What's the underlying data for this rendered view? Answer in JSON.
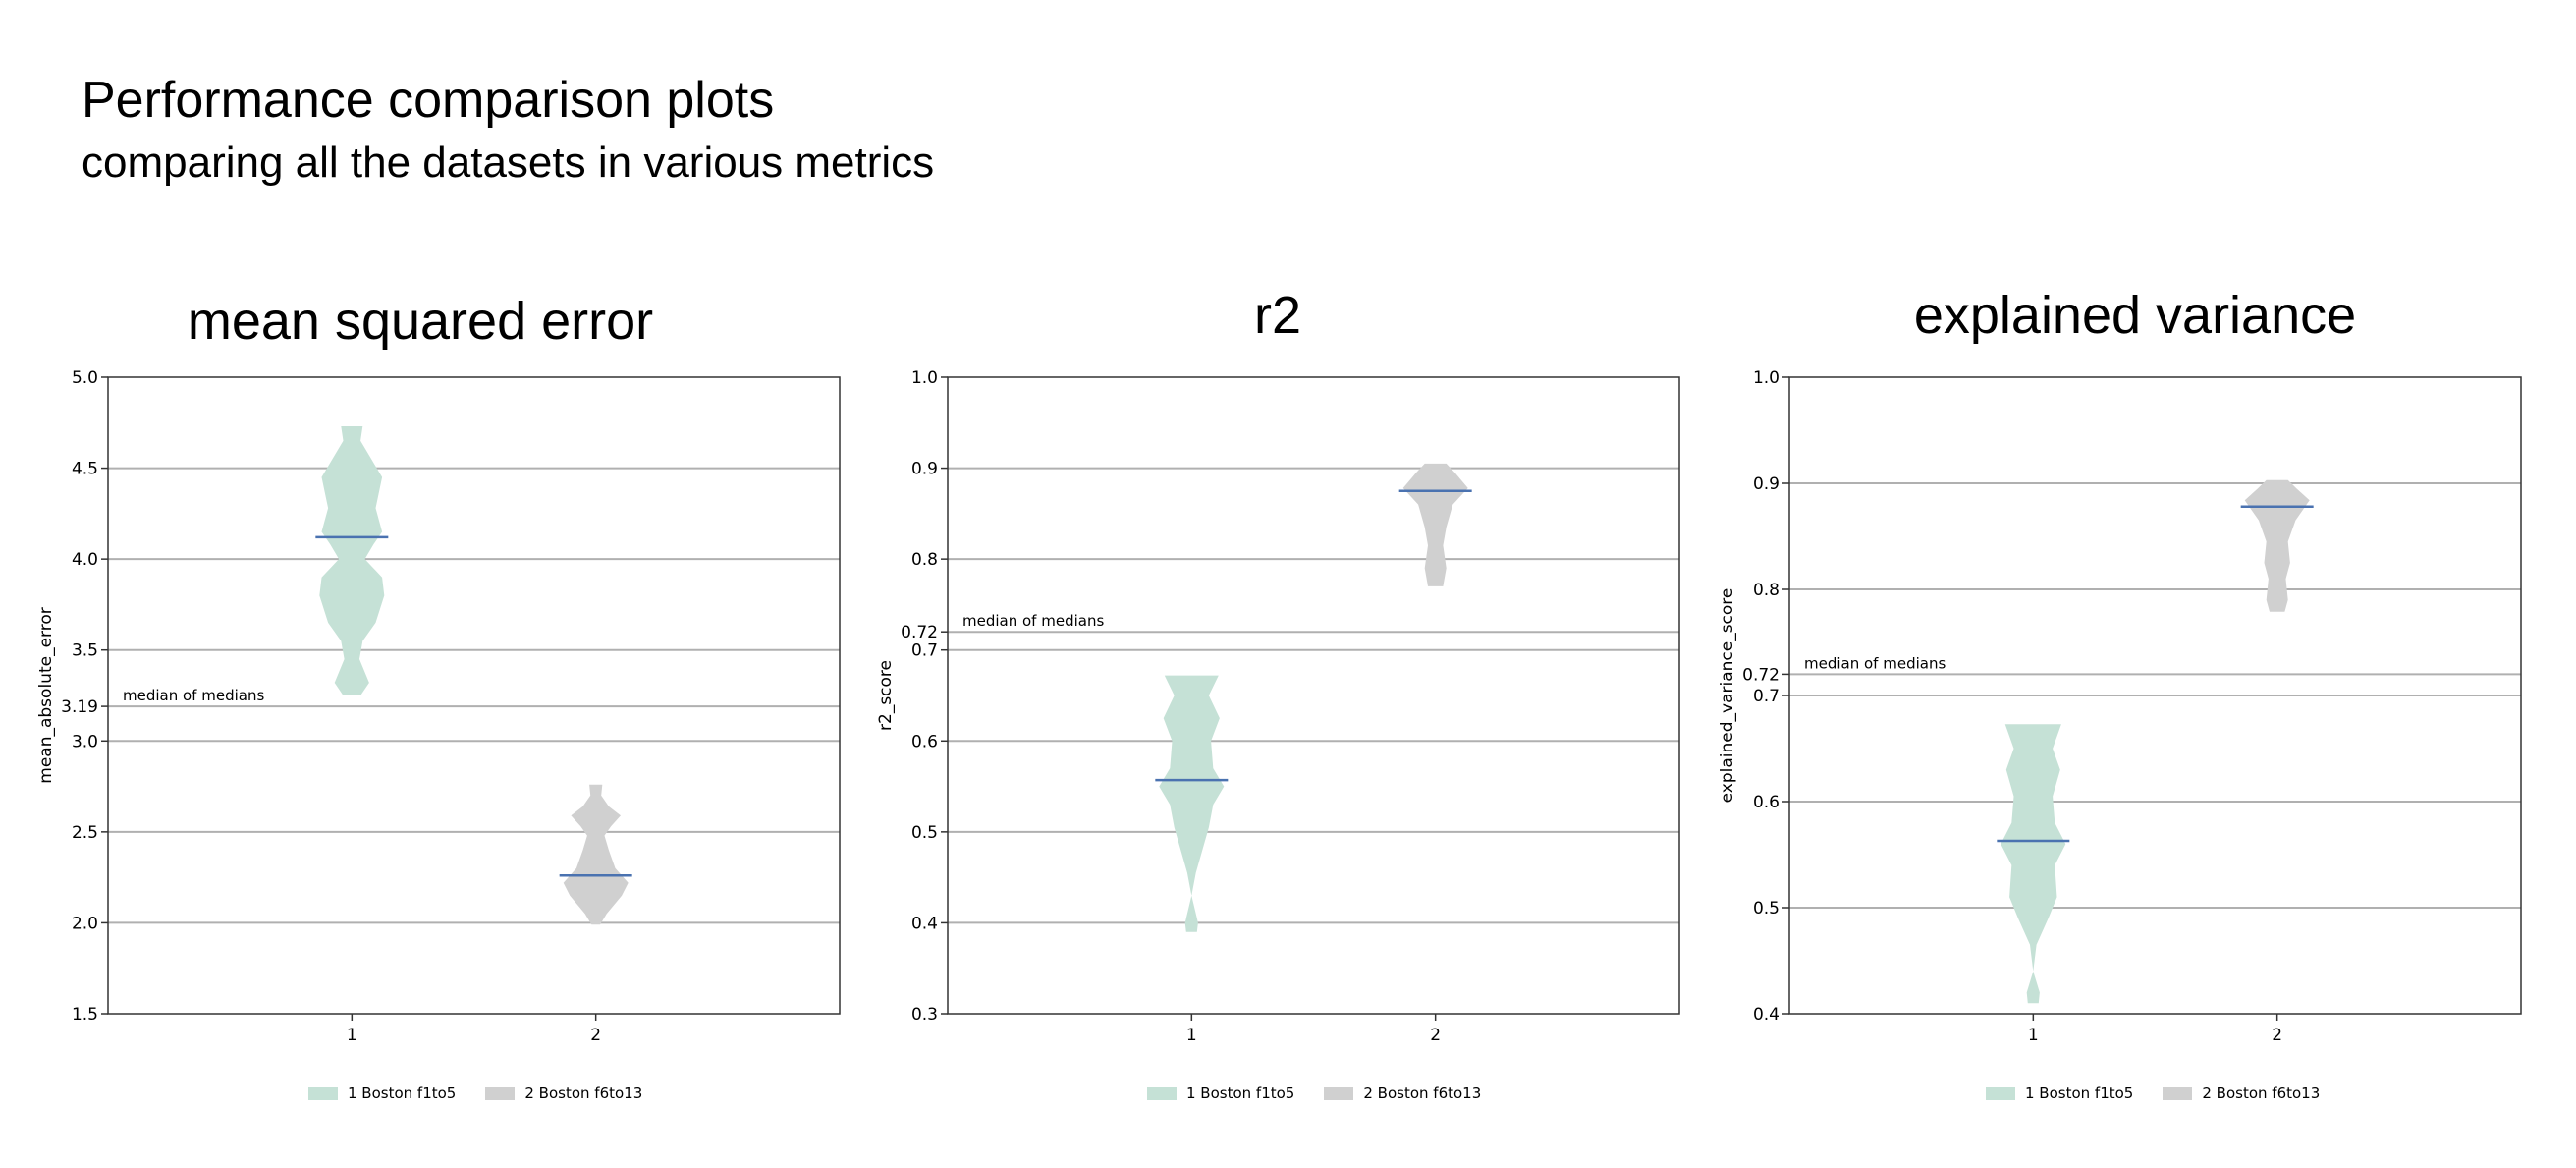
{
  "title": "Performance comparison plots",
  "subtitle": "comparing all the datasets in various metrics",
  "colors": {
    "series_1": "#c5e1d6",
    "series_2": "#d0d0d0",
    "median_line": "#4a72b0",
    "grid": "#b0b0b0",
    "axes": "#333333"
  },
  "legend": {
    "series_1": "1 Boston f1to5",
    "series_2": "2 Boston f6to13"
  },
  "chart_data": [
    {
      "type": "violin",
      "title": "mean squared error",
      "xlabel": "",
      "ylabel": "mean_absolute_error",
      "ylim": [
        1.5,
        5.0
      ],
      "yticks": [
        "1.5",
        "2.0",
        "2.5",
        "3.0",
        "3.5",
        "4.0",
        "4.5",
        "5.0"
      ],
      "xlim": [
        0,
        3
      ],
      "xticks": [
        "1",
        "2"
      ],
      "grid": true,
      "legend_position": "bottom-center",
      "reference_line": {
        "value": 3.19,
        "tick_label": "3.19",
        "label": "median of medians"
      },
      "series": [
        {
          "name": "1 Boston f1to5",
          "position": 1,
          "median": 4.12,
          "profile": [
            [
              3.25,
              0.08
            ],
            [
              3.32,
              0.16
            ],
            [
              3.45,
              0.07
            ],
            [
              3.55,
              0.1
            ],
            [
              3.65,
              0.22
            ],
            [
              3.8,
              0.3
            ],
            [
              3.9,
              0.28
            ],
            [
              4.0,
              0.12
            ],
            [
              4.08,
              0.2
            ],
            [
              4.15,
              0.28
            ],
            [
              4.28,
              0.22
            ],
            [
              4.45,
              0.28
            ],
            [
              4.55,
              0.18
            ],
            [
              4.65,
              0.08
            ],
            [
              4.73,
              0.1
            ]
          ]
        },
        {
          "name": "2 Boston f6to13",
          "position": 2,
          "median": 2.26,
          "profile": [
            [
              1.99,
              0.04
            ],
            [
              2.05,
              0.1
            ],
            [
              2.15,
              0.24
            ],
            [
              2.22,
              0.3
            ],
            [
              2.3,
              0.18
            ],
            [
              2.4,
              0.12
            ],
            [
              2.48,
              0.08
            ],
            [
              2.53,
              0.14
            ],
            [
              2.59,
              0.23
            ],
            [
              2.64,
              0.12
            ],
            [
              2.7,
              0.05
            ],
            [
              2.76,
              0.06
            ]
          ]
        }
      ]
    },
    {
      "type": "violin",
      "title": "r2",
      "xlabel": "",
      "ylabel": "r2_score",
      "ylim": [
        0.3,
        1.0
      ],
      "yticks": [
        "0.3",
        "0.4",
        "0.5",
        "0.6",
        "0.7",
        "0.8",
        "0.9",
        "1.0"
      ],
      "xlim": [
        0,
        3
      ],
      "xticks": [
        "1",
        "2"
      ],
      "grid": true,
      "legend_position": "bottom-center",
      "reference_line": {
        "value": 0.72,
        "tick_label": "0.72",
        "label": "median of medians"
      },
      "series": [
        {
          "name": "1 Boston f1to5",
          "position": 1,
          "median": 0.557,
          "profile": [
            [
              0.39,
              0.05
            ],
            [
              0.4,
              0.06
            ],
            [
              0.43,
              0.0
            ],
            [
              0.455,
              0.04
            ],
            [
              0.48,
              0.1
            ],
            [
              0.505,
              0.16
            ],
            [
              0.53,
              0.2
            ],
            [
              0.55,
              0.3
            ],
            [
              0.57,
              0.2
            ],
            [
              0.6,
              0.18
            ],
            [
              0.625,
              0.26
            ],
            [
              0.65,
              0.16
            ],
            [
              0.672,
              0.25
            ]
          ]
        },
        {
          "name": "2 Boston f6to13",
          "position": 2,
          "median": 0.875,
          "profile": [
            [
              0.77,
              0.07
            ],
            [
              0.79,
              0.1
            ],
            [
              0.815,
              0.07
            ],
            [
              0.835,
              0.1
            ],
            [
              0.86,
              0.16
            ],
            [
              0.878,
              0.3
            ],
            [
              0.895,
              0.18
            ],
            [
              0.905,
              0.1
            ]
          ]
        }
      ]
    },
    {
      "type": "violin",
      "title": "explained variance",
      "xlabel": "",
      "ylabel": "explained_variance_score",
      "ylim": [
        0.4,
        1.0
      ],
      "yticks": [
        "0.4",
        "0.5",
        "0.6",
        "0.7",
        "0.8",
        "0.9",
        "1.0"
      ],
      "xlim": [
        0,
        3
      ],
      "xticks": [
        "1",
        "2"
      ],
      "grid": true,
      "legend_position": "bottom-center",
      "reference_line": {
        "value": 0.72,
        "tick_label": "0.72",
        "label": "median of medians"
      },
      "series": [
        {
          "name": "1 Boston f1to5",
          "position": 1,
          "median": 0.563,
          "profile": [
            [
              0.41,
              0.05
            ],
            [
              0.42,
              0.06
            ],
            [
              0.44,
              0.0
            ],
            [
              0.465,
              0.03
            ],
            [
              0.49,
              0.14
            ],
            [
              0.51,
              0.22
            ],
            [
              0.54,
              0.2
            ],
            [
              0.56,
              0.3
            ],
            [
              0.58,
              0.2
            ],
            [
              0.605,
              0.18
            ],
            [
              0.63,
              0.25
            ],
            [
              0.65,
              0.18
            ],
            [
              0.673,
              0.26
            ]
          ]
        },
        {
          "name": "2 Boston f6to13",
          "position": 2,
          "median": 0.878,
          "profile": [
            [
              0.779,
              0.07
            ],
            [
              0.79,
              0.1
            ],
            [
              0.81,
              0.08
            ],
            [
              0.825,
              0.12
            ],
            [
              0.845,
              0.1
            ],
            [
              0.865,
              0.17
            ],
            [
              0.884,
              0.3
            ],
            [
              0.895,
              0.18
            ],
            [
              0.903,
              0.1
            ]
          ]
        }
      ]
    }
  ]
}
